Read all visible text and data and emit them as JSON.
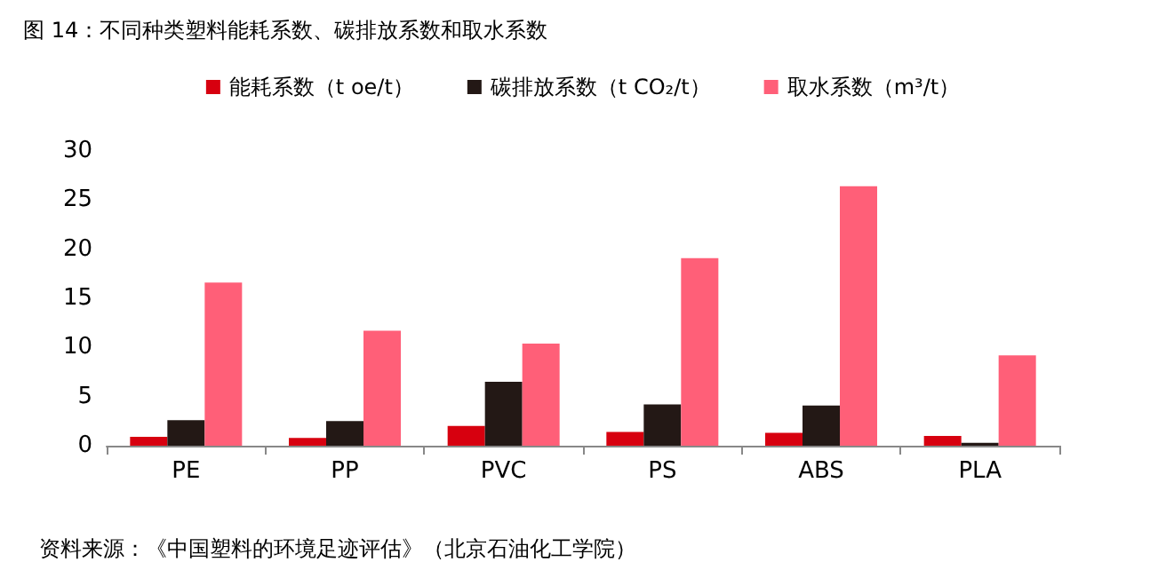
{
  "chart_data": {
    "type": "bar",
    "title": "图 14：不同种类塑料能耗系数、碳排放系数和取水系数",
    "categories": [
      "PE",
      "PP",
      "PVC",
      "PS",
      "ABS",
      "PLA"
    ],
    "series": [
      {
        "name": "能耗系数（t oe/t）",
        "color": "#d7000f",
        "values": [
          0.9,
          0.8,
          2.0,
          1.4,
          1.3,
          1.0
        ]
      },
      {
        "name": "碳排放系数（t CO₂/t）",
        "color": "#231815",
        "values": [
          2.6,
          2.5,
          6.5,
          4.2,
          4.1,
          0.3
        ]
      },
      {
        "name": "取水系数（m³/t）",
        "color": "#ff5f78",
        "values": [
          16.6,
          11.7,
          10.4,
          19.1,
          26.4,
          9.2
        ]
      }
    ],
    "ylim": [
      0,
      30
    ],
    "yticks": [
      0,
      5,
      10,
      15,
      20,
      25,
      30
    ],
    "grid": false,
    "legend": "top",
    "annotations": [
      "资料来源：《中国塑料的环境足迹评估》（北京石油化工学院）"
    ]
  }
}
